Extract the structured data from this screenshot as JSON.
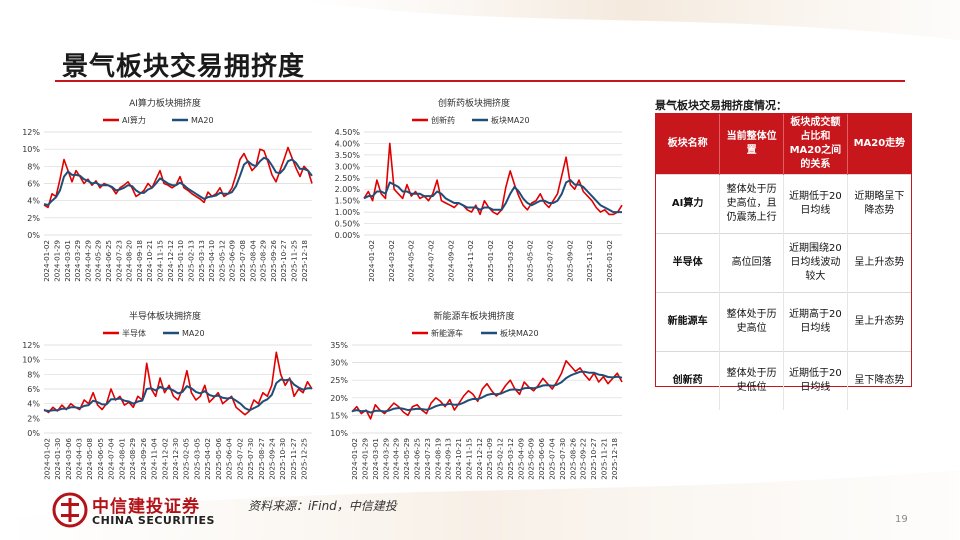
{
  "title": "景气板块交易拥挤度",
  "colors": {
    "accent": "#c8161d",
    "series_primary": "#e00000",
    "series_ma": "#1f4e79"
  },
  "chart_data": [
    {
      "type": "line",
      "title": "AI算力板块拥挤度",
      "xlabel": "",
      "ylabel": "",
      "ylim": [
        0,
        12
      ],
      "yticks": [
        0,
        2,
        4,
        6,
        8,
        10,
        12
      ],
      "ytick_labels": [
        "0%",
        "2%",
        "4%",
        "6%",
        "8%",
        "10%",
        "12%"
      ],
      "x_tick_labels": [
        "2024-01-02",
        "2024-01-29",
        "2024-03-01",
        "2024-03-29",
        "2024-04-29",
        "2024-05-29",
        "2024-06-25",
        "2024-07-23",
        "2024-08-20",
        "2024-09-18",
        "2024-10-21",
        "2024-11-15",
        "2024-12-12",
        "2025-01-10",
        "2025-02-13",
        "2025-03-13",
        "2025-04-10",
        "2025-05-12",
        "2025-06-09",
        "2025-07-08",
        "2025-08-04",
        "2025-08-29",
        "2025-09-26",
        "2025-10-27",
        "2025-11-25",
        "2025-12-18"
      ],
      "legend_position": "top-center",
      "series": [
        {
          "name": "AI算力",
          "values": [
            3.5,
            3.2,
            4.8,
            4.5,
            6.5,
            8.8,
            7.5,
            6.2,
            7.5,
            6.8,
            6.0,
            6.5,
            5.8,
            6.3,
            5.5,
            6.0,
            5.8,
            5.5,
            4.8,
            5.5,
            5.8,
            6.2,
            5.5,
            4.5,
            4.8,
            5.2,
            6.0,
            5.5,
            6.5,
            7.5,
            6.0,
            5.8,
            5.5,
            5.8,
            6.8,
            5.5,
            5.2,
            4.8,
            4.5,
            4.2,
            3.8,
            5.0,
            4.5,
            4.8,
            5.5,
            4.5,
            4.8,
            5.5,
            7.0,
            8.8,
            9.5,
            8.5,
            7.5,
            8.0,
            10.0,
            9.8,
            8.5,
            7.0,
            6.2,
            7.5,
            8.8,
            10.2,
            9.0,
            7.8,
            6.8,
            8.0,
            7.5,
            6.0
          ]
        },
        {
          "name": "MA20",
          "values": [
            3.6,
            3.5,
            4.0,
            4.4,
            5.2,
            6.8,
            7.4,
            7.0,
            7.0,
            6.9,
            6.5,
            6.3,
            6.0,
            6.1,
            5.8,
            5.8,
            5.8,
            5.6,
            5.2,
            5.3,
            5.5,
            5.8,
            5.7,
            5.2,
            4.9,
            4.9,
            5.3,
            5.5,
            6.0,
            6.6,
            6.3,
            6.0,
            5.8,
            5.8,
            6.1,
            5.8,
            5.4,
            5.1,
            4.8,
            4.5,
            4.2,
            4.4,
            4.5,
            4.6,
            4.9,
            4.8,
            4.8,
            5.0,
            5.7,
            6.9,
            8.2,
            8.6,
            8.2,
            8.0,
            8.6,
            9.0,
            8.8,
            8.1,
            7.3,
            7.2,
            7.7,
            8.6,
            8.8,
            8.4,
            7.7,
            7.7,
            7.5,
            6.9
          ]
        }
      ]
    },
    {
      "type": "line",
      "title": "创新药板块拥挤度",
      "xlabel": "",
      "ylabel": "",
      "ylim": [
        0,
        4.5
      ],
      "yticks": [
        0,
        0.5,
        1.0,
        1.5,
        2.0,
        2.5,
        3.0,
        3.5,
        4.0,
        4.5
      ],
      "ytick_labels": [
        "0.00%",
        "0.50%",
        "1.00%",
        "1.50%",
        "2.00%",
        "2.50%",
        "3.00%",
        "3.50%",
        "4.00%",
        "4.50%"
      ],
      "x_tick_labels": [
        "2024-01-02",
        "2024-03-02",
        "2024-05-02",
        "2024-07-02",
        "2024-09-02",
        "2024-11-02",
        "2025-01-02",
        "2025-03-02",
        "2025-05-02",
        "2025-07-02",
        "2025-09-02",
        "2025-11-02",
        "2026-01-02"
      ],
      "legend_position": "top-center",
      "series": [
        {
          "name": "创新药",
          "values": [
            1.6,
            1.9,
            1.5,
            2.4,
            1.8,
            1.6,
            4.0,
            2.0,
            1.8,
            1.6,
            2.2,
            1.7,
            1.9,
            1.6,
            1.7,
            1.5,
            1.8,
            2.4,
            1.5,
            1.4,
            1.3,
            1.2,
            1.4,
            1.3,
            1.1,
            1.0,
            1.3,
            0.9,
            1.5,
            1.2,
            1.0,
            0.9,
            1.1,
            2.1,
            2.8,
            2.2,
            1.7,
            1.3,
            1.1,
            1.4,
            1.5,
            1.8,
            1.4,
            1.2,
            1.5,
            1.8,
            2.6,
            3.4,
            2.2,
            2.0,
            2.4,
            1.9,
            1.7,
            1.5,
            1.2,
            1.0,
            1.1,
            0.9,
            0.9,
            1.0,
            1.3
          ]
        },
        {
          "name": "板块MA20",
          "values": [
            1.6,
            1.7,
            1.7,
            1.9,
            1.9,
            1.8,
            2.3,
            2.2,
            2.1,
            1.9,
            1.9,
            1.8,
            1.8,
            1.8,
            1.7,
            1.7,
            1.7,
            1.9,
            1.8,
            1.6,
            1.5,
            1.4,
            1.4,
            1.3,
            1.2,
            1.2,
            1.2,
            1.1,
            1.2,
            1.2,
            1.1,
            1.1,
            1.1,
            1.4,
            1.8,
            2.1,
            1.9,
            1.6,
            1.4,
            1.3,
            1.4,
            1.5,
            1.5,
            1.4,
            1.4,
            1.5,
            1.8,
            2.3,
            2.4,
            2.2,
            2.2,
            2.1,
            1.9,
            1.7,
            1.5,
            1.3,
            1.2,
            1.1,
            1.0,
            1.0,
            1.0
          ]
        }
      ]
    },
    {
      "type": "line",
      "title": "半导体板块拥挤度",
      "xlabel": "",
      "ylabel": "",
      "ylim": [
        0,
        12
      ],
      "yticks": [
        0,
        2,
        4,
        6,
        8,
        10,
        12
      ],
      "ytick_labels": [
        "0%",
        "2%",
        "4%",
        "6%",
        "8%",
        "10%",
        "12%"
      ],
      "x_tick_labels": [
        "2024-01-02",
        "2024-01-30",
        "2024-03-06",
        "2024-04-03",
        "2024-05-08",
        "2024-06-05",
        "2024-07-04",
        "2024-08-01",
        "2024-08-29",
        "2024-09-26",
        "2024-11-04",
        "2024-12-02",
        "2024-12-30",
        "2025-02-05",
        "2025-03-05",
        "2025-04-02",
        "2025-05-06",
        "2025-06-04",
        "2025-07-02",
        "2025-07-30",
        "2025-08-27",
        "2025-09-24",
        "2025-10-30",
        "2025-11-27",
        "2025-12-25"
      ],
      "legend_position": "top-center",
      "series": [
        {
          "name": "半导体",
          "values": [
            3.2,
            2.8,
            3.5,
            3.0,
            3.8,
            3.2,
            4.0,
            3.5,
            3.2,
            4.5,
            4.0,
            5.5,
            3.8,
            3.2,
            4.0,
            6.0,
            4.5,
            5.0,
            3.8,
            4.2,
            3.5,
            5.0,
            4.5,
            9.5,
            6.0,
            5.0,
            7.5,
            5.5,
            6.5,
            5.0,
            4.5,
            6.0,
            8.5,
            5.5,
            4.5,
            5.0,
            6.5,
            4.2,
            4.8,
            5.5,
            4.0,
            4.5,
            5.0,
            3.5,
            3.0,
            2.5,
            3.0,
            4.5,
            4.0,
            5.5,
            5.0,
            6.5,
            11.0,
            8.0,
            6.5,
            7.5,
            5.0,
            6.0,
            5.5,
            7.0,
            6.0
          ]
        },
        {
          "name": "MA20",
          "values": [
            3.1,
            3.0,
            3.1,
            3.1,
            3.3,
            3.3,
            3.5,
            3.5,
            3.4,
            3.7,
            3.8,
            4.4,
            4.2,
            3.9,
            3.9,
            4.6,
            4.6,
            4.7,
            4.4,
            4.3,
            4.0,
            4.3,
            4.4,
            6.0,
            6.1,
            5.8,
            6.3,
            6.0,
            6.1,
            5.8,
            5.4,
            5.6,
            6.4,
            6.1,
            5.6,
            5.4,
            5.7,
            5.2,
            5.0,
            5.1,
            4.8,
            4.7,
            4.8,
            4.4,
            4.0,
            3.4,
            3.1,
            3.4,
            3.7,
            4.3,
            4.6,
            5.2,
            6.8,
            7.3,
            7.2,
            7.3,
            6.6,
            6.2,
            5.9,
            6.1,
            6.1
          ]
        }
      ]
    },
    {
      "type": "line",
      "title": "新能源车板块拥挤度",
      "xlabel": "",
      "ylabel": "",
      "ylim": [
        10,
        35
      ],
      "yticks": [
        10,
        15,
        20,
        25,
        30,
        35
      ],
      "ytick_labels": [
        "10%",
        "15%",
        "20%",
        "25%",
        "30%",
        "35%"
      ],
      "x_tick_labels": [
        "2024-01-02",
        "2024-01-29",
        "2024-03-01",
        "2024-03-29",
        "2024-04-29",
        "2024-05-29",
        "2024-06-25",
        "2024-07-23",
        "2024-08-19",
        "2024-09-13",
        "2024-10-21",
        "2024-11-15",
        "2024-12-12",
        "2025-01-09",
        "2025-02-12",
        "2025-03-12",
        "2025-04-09",
        "2025-05-09",
        "2025-06-06",
        "2025-07-04",
        "2025-07-30",
        "2025-08-26",
        "2025-09-22",
        "2025-10-27",
        "2025-11-21",
        "2025-12-18"
      ],
      "legend_position": "top-center",
      "series": [
        {
          "name": "新能源车",
          "values": [
            16.0,
            17.5,
            15.5,
            16.5,
            14.0,
            18.0,
            16.5,
            15.5,
            17.0,
            18.5,
            17.5,
            16.0,
            15.0,
            17.5,
            18.0,
            16.5,
            15.5,
            18.5,
            20.0,
            19.0,
            17.5,
            19.5,
            16.5,
            18.5,
            20.5,
            22.0,
            21.0,
            19.0,
            22.5,
            24.0,
            22.0,
            20.5,
            21.5,
            23.5,
            25.0,
            22.5,
            21.0,
            24.5,
            23.0,
            22.0,
            23.5,
            25.5,
            24.0,
            22.5,
            24.5,
            27.0,
            30.5,
            29.0,
            27.5,
            28.5,
            26.5,
            25.0,
            27.0,
            24.5,
            26.0,
            24.0,
            25.5,
            27.0,
            24.5
          ]
        },
        {
          "name": "板块MA20",
          "values": [
            16.2,
            16.5,
            16.2,
            16.3,
            15.8,
            16.3,
            16.3,
            16.1,
            16.4,
            16.9,
            17.1,
            16.9,
            16.5,
            16.7,
            16.9,
            16.8,
            16.6,
            17.0,
            17.6,
            18.0,
            18.0,
            18.3,
            18.0,
            18.1,
            18.6,
            19.3,
            19.7,
            19.6,
            20.1,
            20.8,
            21.1,
            21.0,
            21.2,
            21.8,
            22.3,
            22.4,
            22.2,
            22.7,
            22.8,
            22.7,
            23.0,
            23.5,
            23.6,
            23.4,
            23.7,
            24.4,
            25.6,
            26.4,
            26.9,
            27.4,
            27.4,
            27.1,
            27.1,
            26.6,
            26.4,
            25.9,
            25.8,
            26.0,
            25.7
          ]
        }
      ]
    }
  ],
  "side_table": {
    "title": "景气板块交易拥挤度情况：",
    "headers": [
      "板块名称",
      "当前整体位置",
      "板块成交额占比和MA20之间的关系",
      "MA20走势"
    ],
    "rows": [
      [
        "AI算力",
        "整体处于历史高位，且仍震荡上行",
        "近期低于20日均线",
        "近期略呈下降态势"
      ],
      [
        "半导体",
        "高位回落",
        "近期围绕20日均线波动较大",
        "呈上升态势"
      ],
      [
        "新能源车",
        "整体处于历史高位",
        "近期高于20日均线",
        "呈上升态势"
      ],
      [
        "创新药",
        "整体处于历史低位",
        "近期低于20日均线",
        "呈下降态势"
      ]
    ]
  },
  "footer": {
    "logo_cn": "中信建投证券",
    "logo_en": "CHINA SECURITIES",
    "source": "资料来源：iFind，中信建投",
    "page_number": "19"
  }
}
